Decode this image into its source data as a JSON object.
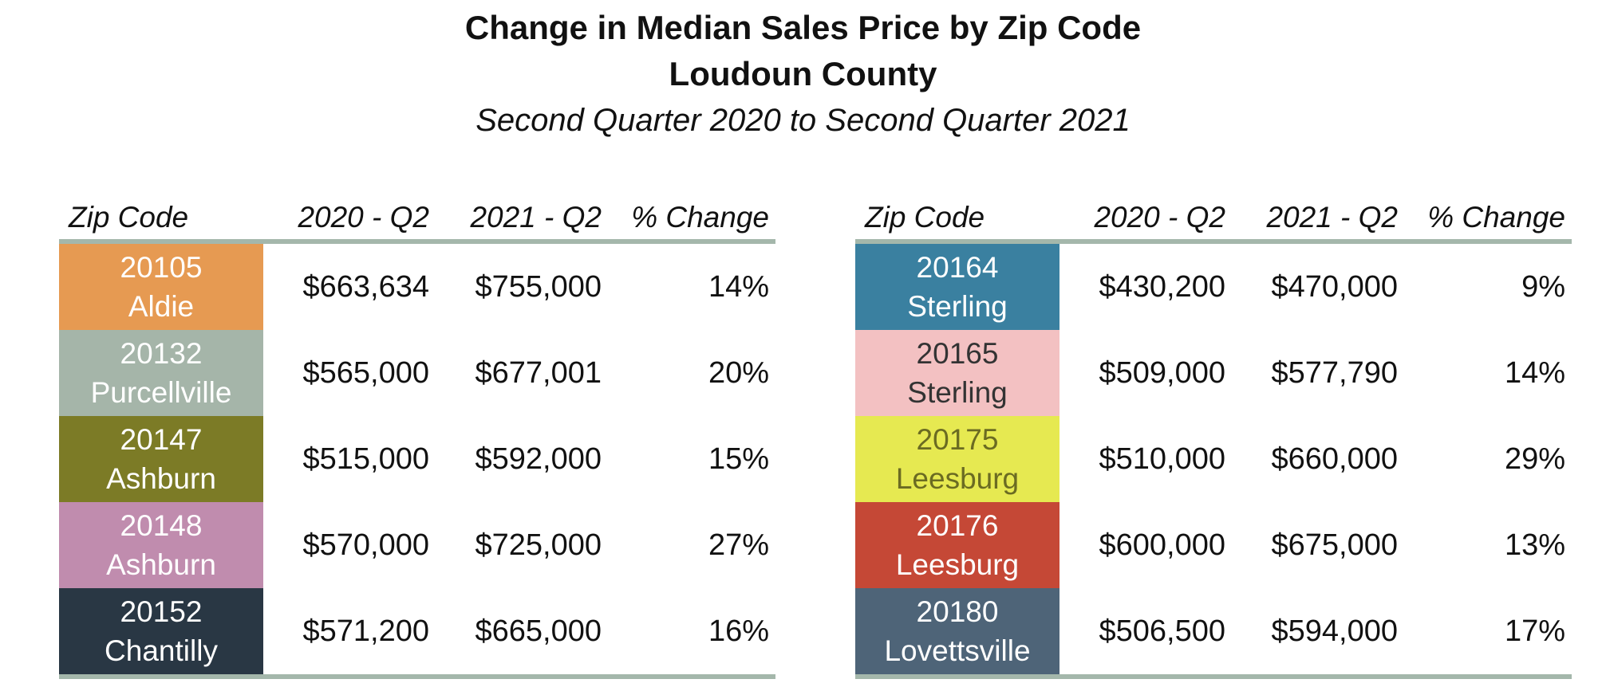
{
  "title": {
    "line1": "Change in Median Sales Price by Zip Code",
    "line2": "Loudoun County",
    "line3": "Second Quarter 2020 to Second Quarter 2021"
  },
  "columns": [
    "Zip Code",
    "2020 - Q2",
    "2021 - Q2",
    "% Change"
  ],
  "colors": {
    "rule": "#A4B7AB",
    "background": "#FFFFFF",
    "text": "#111111"
  },
  "tables": [
    {
      "rows": [
        {
          "zip": "20105",
          "city": "Aldie",
          "v2020": "$663,634",
          "v2021": "$755,000",
          "pct": "14%",
          "bg": "#E69A52",
          "fg": "#FFFFFF"
        },
        {
          "zip": "20132",
          "city": "Purcellville",
          "v2020": "$565,000",
          "v2021": "$677,001",
          "pct": "20%",
          "bg": "#A5B5A9",
          "fg": "#FFFFFF"
        },
        {
          "zip": "20147",
          "city": "Ashburn",
          "v2020": "$515,000",
          "v2021": "$592,000",
          "pct": "15%",
          "bg": "#7C7B26",
          "fg": "#FFFFFF"
        },
        {
          "zip": "20148",
          "city": "Ashburn",
          "v2020": "$570,000",
          "v2021": "$725,000",
          "pct": "27%",
          "bg": "#C08CAE",
          "fg": "#FFFFFF"
        },
        {
          "zip": "20152",
          "city": "Chantilly",
          "v2020": "$571,200",
          "v2021": "$665,000",
          "pct": "16%",
          "bg": "#293744",
          "fg": "#FFFFFF"
        }
      ]
    },
    {
      "rows": [
        {
          "zip": "20164",
          "city": "Sterling",
          "v2020": "$430,200",
          "v2021": "$470,000",
          "pct": "9%",
          "bg": "#3A80A0",
          "fg": "#FFFFFF"
        },
        {
          "zip": "20165",
          "city": "Sterling",
          "v2020": "$509,000",
          "v2021": "$577,790",
          "pct": "14%",
          "bg": "#F3C1C2",
          "fg": "#333333"
        },
        {
          "zip": "20175",
          "city": "Leesburg",
          "v2020": "$510,000",
          "v2021": "$660,000",
          "pct": "29%",
          "bg": "#E6E951",
          "fg": "#6B6B22"
        },
        {
          "zip": "20176",
          "city": "Leesburg",
          "v2020": "$600,000",
          "v2021": "$675,000",
          "pct": "13%",
          "bg": "#C54836",
          "fg": "#FFFFFF"
        },
        {
          "zip": "20180",
          "city": "Lovettsville",
          "v2020": "$506,500",
          "v2021": "$594,000",
          "pct": "17%",
          "bg": "#4E6478",
          "fg": "#FFFFFF"
        }
      ]
    }
  ],
  "chart_data": {
    "type": "table",
    "title": "Change in Median Sales Price by Zip Code",
    "subtitle": "Loudoun County",
    "period": "Second Quarter 2020 to Second Quarter 2021",
    "columns": [
      "Zip Code",
      "2020 - Q2",
      "2021 - Q2",
      "% Change"
    ],
    "rows": [
      [
        "20105 Aldie",
        663634,
        755000,
        14
      ],
      [
        "20132 Purcellville",
        565000,
        677001,
        20
      ],
      [
        "20147 Ashburn",
        515000,
        592000,
        15
      ],
      [
        "20148 Ashburn",
        570000,
        725000,
        27
      ],
      [
        "20152 Chantilly",
        571200,
        665000,
        16
      ],
      [
        "20164 Sterling",
        430200,
        470000,
        9
      ],
      [
        "20165 Sterling",
        509000,
        577790,
        14
      ],
      [
        "20175 Leesburg",
        510000,
        660000,
        29
      ],
      [
        "20176 Leesburg",
        600000,
        675000,
        13
      ],
      [
        "20180 Lovettsville",
        506500,
        594000,
        17
      ]
    ]
  }
}
